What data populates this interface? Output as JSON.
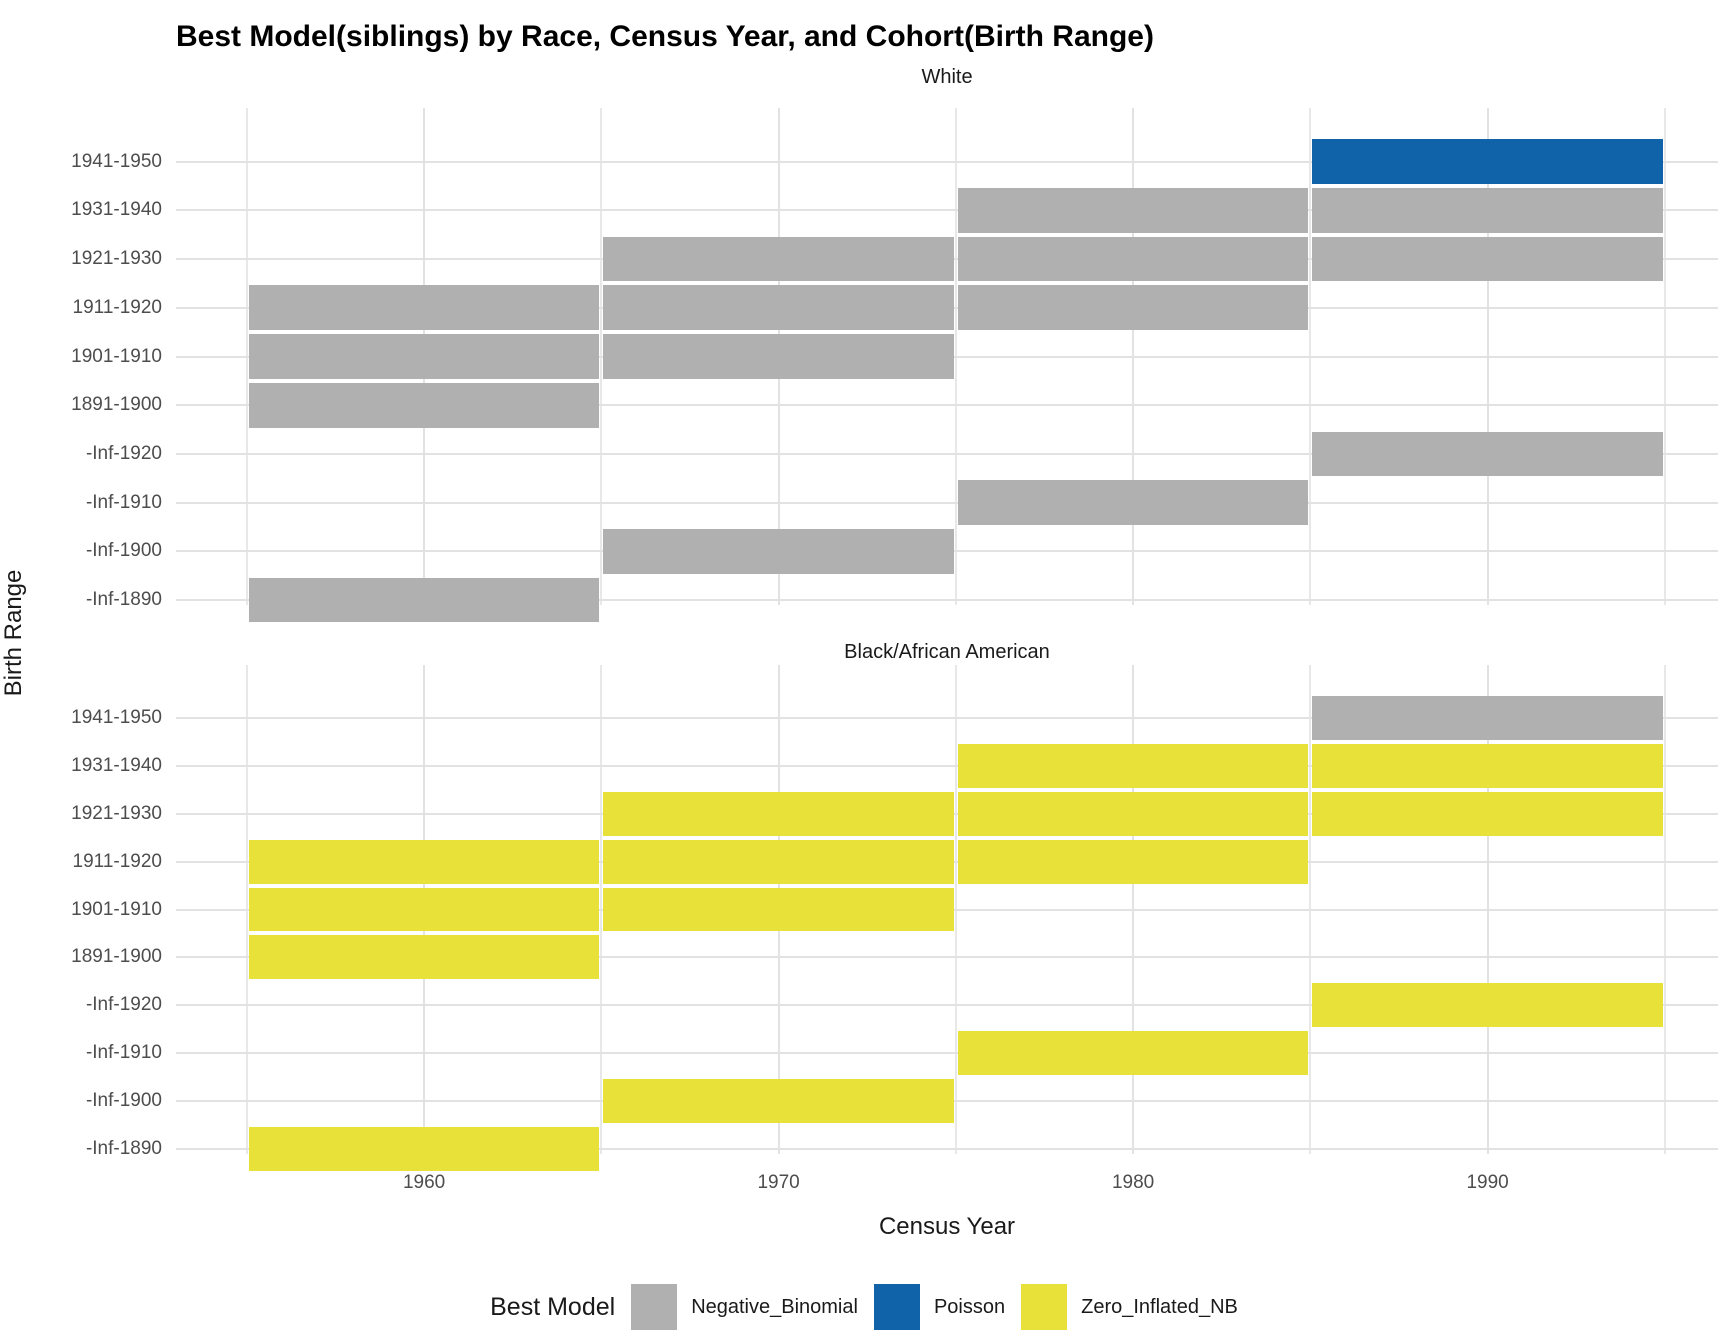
{
  "title": "Best Model(siblings) by Race, Census Year, and Cohort(Birth Range)",
  "x_axis_title": "Census Year",
  "y_axis_title": "Birth Range",
  "legend": {
    "title": "Best Model",
    "entries": [
      {
        "label": "Negative_Binomial",
        "color": "#B0B0B0"
      },
      {
        "label": "Poisson",
        "color": "#1063A8"
      },
      {
        "label": "Zero_Inflated_NB",
        "color": "#E8E13A"
      }
    ]
  },
  "chart_data": {
    "type": "heatmap",
    "title": "Best Model(siblings) by Race, Census Year, and Cohort(Birth Range)",
    "xlabel": "Census Year",
    "ylabel": "Birth Range",
    "x_ticks": [
      1960,
      1970,
      1980,
      1990
    ],
    "x_minor_ticks": [
      1955,
      1965,
      1975,
      1985,
      1995
    ],
    "x_domain": [
      1953,
      1996.5
    ],
    "tile_width_years": 10,
    "grid": "on",
    "legend_position": "bottom",
    "y_categories_top_to_bottom": [
      "1941-1950",
      "1931-1940",
      "1921-1930",
      "1911-1920",
      "1901-1910",
      "1891-1900",
      "-Inf-1920",
      "-Inf-1910",
      "-Inf-1900",
      "-Inf-1890"
    ],
    "model_colors": {
      "Negative_Binomial": "#B0B0B0",
      "Poisson": "#1063A8",
      "Zero_Inflated_NB": "#E8E13A"
    },
    "facets": [
      {
        "label": "White",
        "tiles": [
          {
            "row": "1941-1950",
            "years": [
              1990
            ],
            "model": "Poisson"
          },
          {
            "row": "1931-1940",
            "years": [
              1980,
              1990
            ],
            "model": "Negative_Binomial"
          },
          {
            "row": "1921-1930",
            "years": [
              1970,
              1980,
              1990
            ],
            "model": "Negative_Binomial"
          },
          {
            "row": "1911-1920",
            "years": [
              1960,
              1970,
              1980
            ],
            "model": "Negative_Binomial"
          },
          {
            "row": "1901-1910",
            "years": [
              1960,
              1970
            ],
            "model": "Negative_Binomial"
          },
          {
            "row": "1891-1900",
            "years": [
              1960
            ],
            "model": "Negative_Binomial"
          },
          {
            "row": "-Inf-1920",
            "years": [
              1990
            ],
            "model": "Negative_Binomial"
          },
          {
            "row": "-Inf-1910",
            "years": [
              1980
            ],
            "model": "Negative_Binomial"
          },
          {
            "row": "-Inf-1900",
            "years": [
              1970
            ],
            "model": "Negative_Binomial"
          },
          {
            "row": "-Inf-1890",
            "years": [
              1960
            ],
            "model": "Negative_Binomial"
          }
        ]
      },
      {
        "label": "Black/African American",
        "tiles": [
          {
            "row": "1941-1950",
            "years": [
              1990
            ],
            "model": "Negative_Binomial"
          },
          {
            "row": "1931-1940",
            "years": [
              1980,
              1990
            ],
            "model": "Zero_Inflated_NB"
          },
          {
            "row": "1921-1930",
            "years": [
              1970,
              1980,
              1990
            ],
            "model": "Zero_Inflated_NB"
          },
          {
            "row": "1911-1920",
            "years": [
              1960,
              1970,
              1980
            ],
            "model": "Zero_Inflated_NB"
          },
          {
            "row": "1901-1910",
            "years": [
              1960,
              1970
            ],
            "model": "Zero_Inflated_NB"
          },
          {
            "row": "1891-1900",
            "years": [
              1960
            ],
            "model": "Zero_Inflated_NB"
          },
          {
            "row": "-Inf-1920",
            "years": [
              1990
            ],
            "model": "Zero_Inflated_NB"
          },
          {
            "row": "-Inf-1910",
            "years": [
              1980
            ],
            "model": "Zero_Inflated_NB"
          },
          {
            "row": "-Inf-1900",
            "years": [
              1970
            ],
            "model": "Zero_Inflated_NB"
          },
          {
            "row": "-Inf-1890",
            "years": [
              1960
            ],
            "model": "Zero_Inflated_NB"
          }
        ]
      }
    ]
  }
}
